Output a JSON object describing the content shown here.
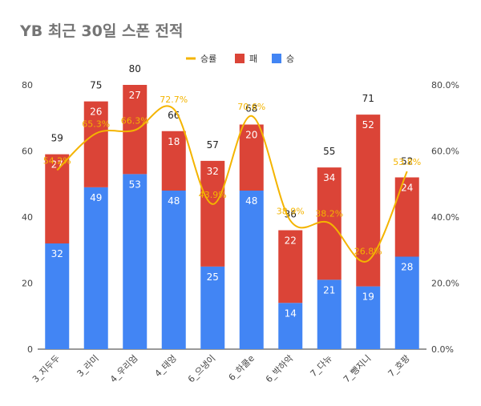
{
  "chart_data": {
    "type": "bar",
    "stacked": true,
    "title": "YB 최근 30일 스폰 전적",
    "categories": [
      "3_지두두",
      "3_라미",
      "4_우리엄",
      "4_태엉",
      "6_으냉이",
      "6_하쿨e",
      "6_박하악",
      "7_다뉴",
      "7_뺑지니",
      "7_호팡"
    ],
    "series": [
      {
        "name": "승",
        "type": "bar",
        "axis": "left",
        "color": "#4285f4",
        "values": [
          32,
          49,
          53,
          48,
          25,
          48,
          14,
          21,
          19,
          28
        ]
      },
      {
        "name": "패",
        "type": "bar",
        "axis": "left",
        "color": "#db4437",
        "values": [
          27,
          26,
          27,
          18,
          32,
          20,
          22,
          34,
          52,
          24
        ]
      },
      {
        "name": "승률",
        "type": "line",
        "axis": "right",
        "color": "#f4b400",
        "values": [
          54.2,
          65.3,
          66.3,
          72.7,
          43.9,
          70.6,
          38.9,
          38.2,
          26.8,
          53.8
        ]
      }
    ],
    "rate_labels": [
      "54.2%",
      "65.3%",
      "66.3%",
      "72.7%",
      "43.9%",
      "70.6%",
      "38.9%",
      "38.2%",
      "26.8%",
      "53.8%"
    ],
    "totals": [
      59,
      75,
      80,
      66,
      57,
      68,
      36,
      55,
      71,
      52
    ],
    "ylim": [
      0,
      80
    ],
    "yticks": [
      0,
      20,
      40,
      60,
      80
    ],
    "y2lim": [
      0,
      80
    ],
    "y2ticks": [
      "0.0%",
      "20.0%",
      "40.0%",
      "60.0%",
      "80.0%"
    ],
    "legend": {
      "position": "top",
      "items": [
        {
          "label": "승률",
          "color": "#f4b400",
          "shape": "line"
        },
        {
          "label": "패",
          "color": "#db4437",
          "shape": "box"
        },
        {
          "label": "승",
          "color": "#4285f4",
          "shape": "box"
        }
      ]
    },
    "grid": false,
    "colors": {
      "win": "#4285f4",
      "loss": "#db4437",
      "rate": "#f4b400"
    }
  }
}
